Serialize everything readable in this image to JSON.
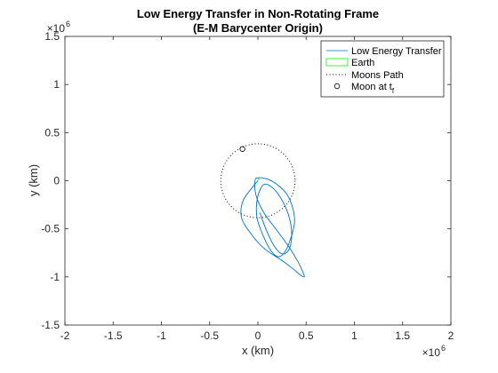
{
  "chart_data": {
    "type": "line",
    "title_line1": "Low Energy Transfer in Non-Rotating Frame",
    "title_line2": "(E-M Barycenter Origin)",
    "xlabel": "x (km)",
    "ylabel": "y (km)",
    "xlim": [
      -2000000,
      2000000
    ],
    "ylim": [
      -1500000,
      1500000
    ],
    "x_exponent_label": "×10",
    "x_exponent_power": "6",
    "y_exponent_label": "×10",
    "y_exponent_power": "6",
    "xticks": [
      -2,
      -1.5,
      -1,
      -0.5,
      0,
      0.5,
      1,
      1.5,
      2
    ],
    "xtick_labels": [
      "-2",
      "-1.5",
      "-1",
      "-0.5",
      "0",
      "0.5",
      "1",
      "1.5",
      "2"
    ],
    "yticks": [
      -1.5,
      -1,
      -0.5,
      0,
      0.5,
      1,
      1.5
    ],
    "ytick_labels": [
      "-1.5",
      "-1",
      "-0.5",
      "0",
      "0.5",
      "1",
      "1.5"
    ],
    "grid": false,
    "legend_position": "top-right",
    "series": [
      {
        "name": "Low Energy Transfer",
        "color": "#0072BD",
        "style": "solid",
        "x": [
          0,
          -150000,
          -170000,
          -80000,
          60000,
          250000,
          370000,
          440000,
          480000,
          470000,
          420000,
          330000,
          200000,
          60000,
          -20000,
          -30000,
          0,
          90000,
          200000,
          300000,
          360000,
          380000,
          340000,
          280000,
          210000,
          130000,
          50000,
          -10000,
          -5000,
          60000,
          160000,
          260000,
          330000,
          350000,
          320000,
          250000,
          170000,
          90000,
          20000
        ],
        "y": [
          0,
          -200000,
          -380000,
          -540000,
          -700000,
          -830000,
          -920000,
          -980000,
          -1000000,
          -960000,
          -850000,
          -700000,
          -520000,
          -330000,
          -150000,
          0,
          30000,
          20000,
          -40000,
          -140000,
          -280000,
          -430000,
          -600000,
          -740000,
          -790000,
          -720000,
          -560000,
          -380000,
          -180000,
          -40000,
          -80000,
          -220000,
          -400000,
          -580000,
          -720000,
          -760000,
          -680000,
          -520000,
          -330000
        ]
      },
      {
        "name": "Earth",
        "color": "#00FF00",
        "style": "solid",
        "x": [
          0,
          6371
        ],
        "y": [
          0,
          0
        ]
      },
      {
        "name": "Moons Path",
        "color": "#000000",
        "style": "dotted",
        "circle_center": [
          0,
          0
        ],
        "circle_radius": 384400
      },
      {
        "name": "Moon at t",
        "name_subscript": "f",
        "color": "#000000",
        "style": "marker-circle",
        "x": [
          -160000
        ],
        "y": [
          330000
        ]
      }
    ]
  }
}
